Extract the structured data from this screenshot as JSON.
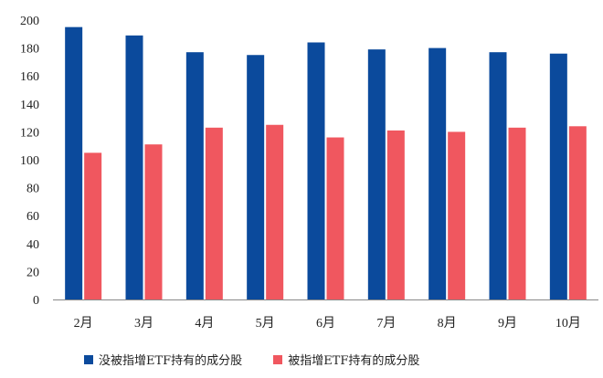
{
  "chart_data": {
    "type": "bar",
    "categories": [
      "2月",
      "3月",
      "4月",
      "5月",
      "6月",
      "7月",
      "8月",
      "9月",
      "10月"
    ],
    "series": [
      {
        "name": "没被指增ETF持有的成分股",
        "color": "#0b4a9c",
        "values": [
          195,
          189,
          177,
          175,
          184,
          179,
          180,
          177,
          176
        ]
      },
      {
        "name": "被指增ETF持有的成分股",
        "color": "#f0575f",
        "values": [
          105,
          111,
          123,
          125,
          116,
          121,
          120,
          123,
          124
        ]
      }
    ],
    "ylim": [
      0,
      200
    ],
    "yticks": [
      0,
      20,
      40,
      60,
      80,
      100,
      120,
      140,
      160,
      180,
      200
    ],
    "legend_position": "bottom"
  }
}
